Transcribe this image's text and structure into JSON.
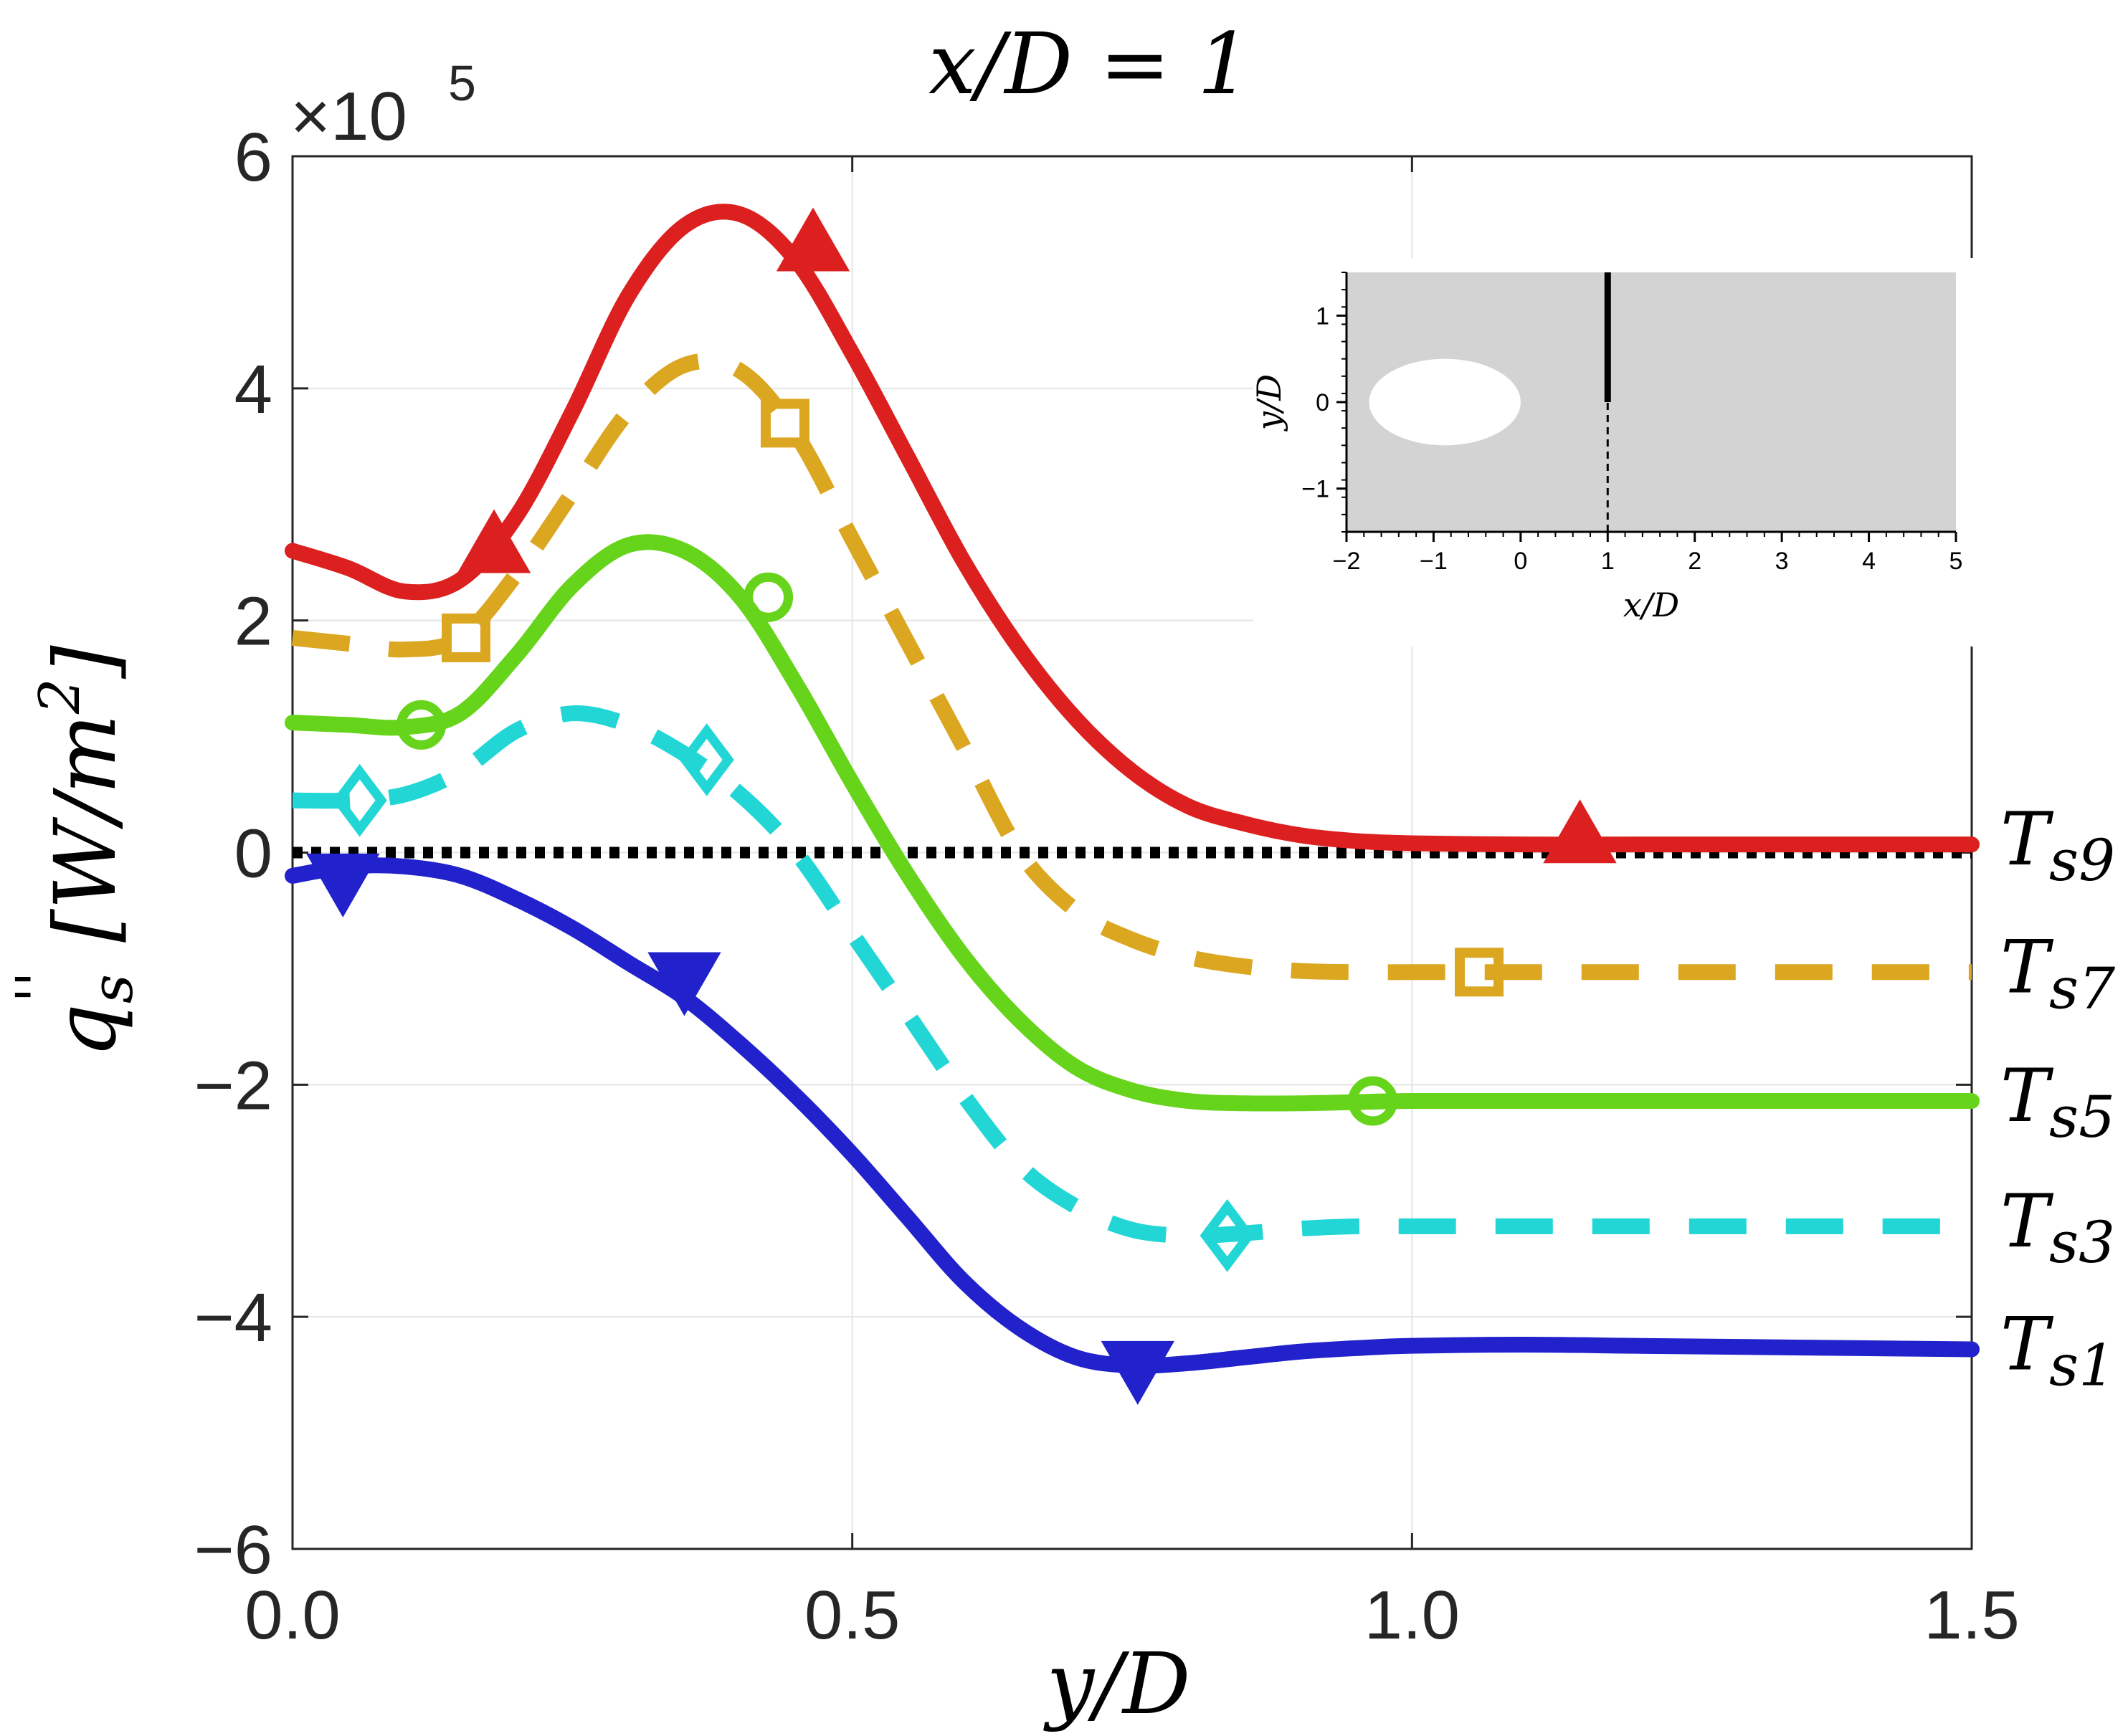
{
  "chart_data": {
    "type": "line",
    "title": "x/D = 1",
    "xlabel": "y/D",
    "ylabel": "q_s'' [W/m^2]",
    "ylabel_parts": {
      "q": "q",
      "sub": "s",
      "prime": "''",
      "unit": "[W/m",
      "sup": "2",
      "close": "]"
    },
    "exponent_label": "×10",
    "exponent_power": "5",
    "xlim": [
      0,
      1.5
    ],
    "ylim": [
      -6,
      6
    ],
    "x_ticks": [
      0,
      0.5,
      1.0,
      1.5
    ],
    "x_tick_labels": [
      "0.0",
      "0.5",
      "1.0",
      "1.5"
    ],
    "y_ticks": [
      -6,
      -4,
      -2,
      0,
      2,
      4,
      6
    ],
    "y_tick_labels": [
      "−6",
      "−4",
      "−2",
      "0",
      "2",
      "4",
      "6"
    ],
    "grid": true,
    "zero_line": {
      "style": "dotted",
      "color": "#000000",
      "value": 0
    },
    "series": [
      {
        "name": "Ts9",
        "label_main": "T",
        "label_sub": "s9",
        "color": "#dc2020",
        "dash": "solid",
        "marker": "triangle-up",
        "x": [
          0,
          0.05,
          0.1,
          0.15,
          0.2,
          0.25,
          0.3,
          0.35,
          0.4,
          0.45,
          0.5,
          0.55,
          0.6,
          0.65,
          0.7,
          0.75,
          0.8,
          0.85,
          0.9,
          0.95,
          1.0,
          1.1,
          1.2,
          1.3,
          1.4,
          1.5
        ],
        "y": [
          2.6,
          2.45,
          2.25,
          2.35,
          2.9,
          3.8,
          4.8,
          5.4,
          5.5,
          5.1,
          4.3,
          3.4,
          2.5,
          1.75,
          1.15,
          0.7,
          0.4,
          0.25,
          0.15,
          0.1,
          0.08,
          0.07,
          0.07,
          0.07,
          0.07,
          0.07
        ],
        "markers_x": [
          0.18,
          0.465,
          1.15
        ],
        "markers_y": [
          2.6,
          5.2,
          0.1
        ]
      },
      {
        "name": "Ts7",
        "label_main": "T",
        "label_sub": "s7",
        "color": "#dba620",
        "dash": "dashed",
        "marker": "square",
        "x": [
          0,
          0.05,
          0.1,
          0.15,
          0.2,
          0.25,
          0.3,
          0.35,
          0.4,
          0.45,
          0.5,
          0.55,
          0.6,
          0.65,
          0.7,
          0.75,
          0.8,
          0.85,
          0.9,
          0.95,
          1.0,
          1.1,
          1.2,
          1.3,
          1.4,
          1.5
        ],
        "y": [
          1.85,
          1.8,
          1.75,
          1.85,
          2.4,
          3.1,
          3.8,
          4.2,
          4.15,
          3.6,
          2.7,
          1.8,
          0.9,
          0.0,
          -0.5,
          -0.75,
          -0.9,
          -0.98,
          -1.02,
          -1.03,
          -1.03,
          -1.03,
          -1.03,
          -1.03,
          -1.03,
          -1.03
        ],
        "markers_x": [
          0.155,
          0.44,
          1.06
        ],
        "markers_y": [
          1.85,
          3.7,
          -1.03
        ]
      },
      {
        "name": "Ts5",
        "label_main": "T",
        "label_sub": "s5",
        "color": "#66d41a",
        "dash": "solid",
        "marker": "circle",
        "x": [
          0,
          0.05,
          0.1,
          0.15,
          0.2,
          0.25,
          0.3,
          0.35,
          0.4,
          0.45,
          0.5,
          0.55,
          0.6,
          0.65,
          0.7,
          0.75,
          0.8,
          0.85,
          0.9,
          0.95,
          1.0,
          1.1,
          1.2,
          1.3,
          1.4,
          1.5
        ],
        "y": [
          1.12,
          1.1,
          1.08,
          1.2,
          1.7,
          2.3,
          2.65,
          2.6,
          2.2,
          1.45,
          0.6,
          -0.2,
          -0.9,
          -1.45,
          -1.85,
          -2.05,
          -2.14,
          -2.16,
          -2.16,
          -2.15,
          -2.14,
          -2.14,
          -2.14,
          -2.14,
          -2.14,
          -2.14
        ],
        "markers_x": [
          0.115,
          0.425,
          0.965
        ],
        "markers_y": [
          1.1,
          2.2,
          -2.14
        ]
      },
      {
        "name": "Ts3",
        "label_main": "T",
        "label_sub": "s3",
        "color": "#22d6d6",
        "dash": "dashed",
        "marker": "diamond",
        "x": [
          0,
          0.05,
          0.1,
          0.15,
          0.2,
          0.25,
          0.3,
          0.35,
          0.4,
          0.45,
          0.5,
          0.55,
          0.6,
          0.65,
          0.7,
          0.75,
          0.8,
          0.85,
          0.9,
          0.95,
          1.0,
          1.1,
          1.2,
          1.3,
          1.4,
          1.5
        ],
        "y": [
          0.45,
          0.45,
          0.5,
          0.7,
          1.05,
          1.2,
          1.1,
          0.85,
          0.5,
          0.0,
          -0.7,
          -1.4,
          -2.1,
          -2.7,
          -3.05,
          -3.25,
          -3.3,
          -3.28,
          -3.24,
          -3.22,
          -3.22,
          -3.22,
          -3.22,
          -3.22,
          -3.22,
          -3.22
        ],
        "markers_x": [
          0.06,
          0.37,
          0.835
        ],
        "markers_y": [
          0.45,
          0.8,
          -3.3
        ]
      },
      {
        "name": "Ts1",
        "label_main": "T",
        "label_sub": "s1",
        "color": "#2222cc",
        "dash": "solid",
        "marker": "triangle-down",
        "x": [
          0,
          0.05,
          0.1,
          0.15,
          0.2,
          0.25,
          0.3,
          0.35,
          0.4,
          0.45,
          0.5,
          0.55,
          0.6,
          0.65,
          0.7,
          0.75,
          0.8,
          0.85,
          0.9,
          0.95,
          1.0,
          1.1,
          1.2,
          1.3,
          1.4,
          1.5
        ],
        "y": [
          -0.2,
          -0.12,
          -0.12,
          -0.2,
          -0.4,
          -0.65,
          -0.95,
          -1.25,
          -1.65,
          -2.1,
          -2.6,
          -3.15,
          -3.7,
          -4.1,
          -4.35,
          -4.42,
          -4.4,
          -4.35,
          -4.3,
          -4.27,
          -4.25,
          -4.24,
          -4.25,
          -4.26,
          -4.27,
          -4.28
        ],
        "markers_x": [
          0.045,
          0.35,
          0.755
        ],
        "markers_y": [
          -0.2,
          -1.05,
          -4.4
        ]
      }
    ],
    "inset": {
      "xlabel": "x/D",
      "ylabel": "y/D",
      "xlim": [
        -2,
        5
      ],
      "ylim": [
        -1.5,
        1.5
      ],
      "x_tick_labels": [
        "−2",
        "−1",
        "0",
        "1",
        "2",
        "3",
        "4",
        "5"
      ],
      "y_tick_labels": [
        "−1",
        "0",
        "1"
      ],
      "domain_color": "#d3d3d3",
      "cylinder_center_x": -0.87,
      "cylinder_center_y": 0,
      "cylinder_radius_x": 0.87,
      "cylinder_radius_y": 0.5,
      "probe_x": 1.0,
      "probe_solid_y": [
        0,
        1.5
      ],
      "probe_dashed_y": [
        -1.5,
        0
      ]
    }
  }
}
